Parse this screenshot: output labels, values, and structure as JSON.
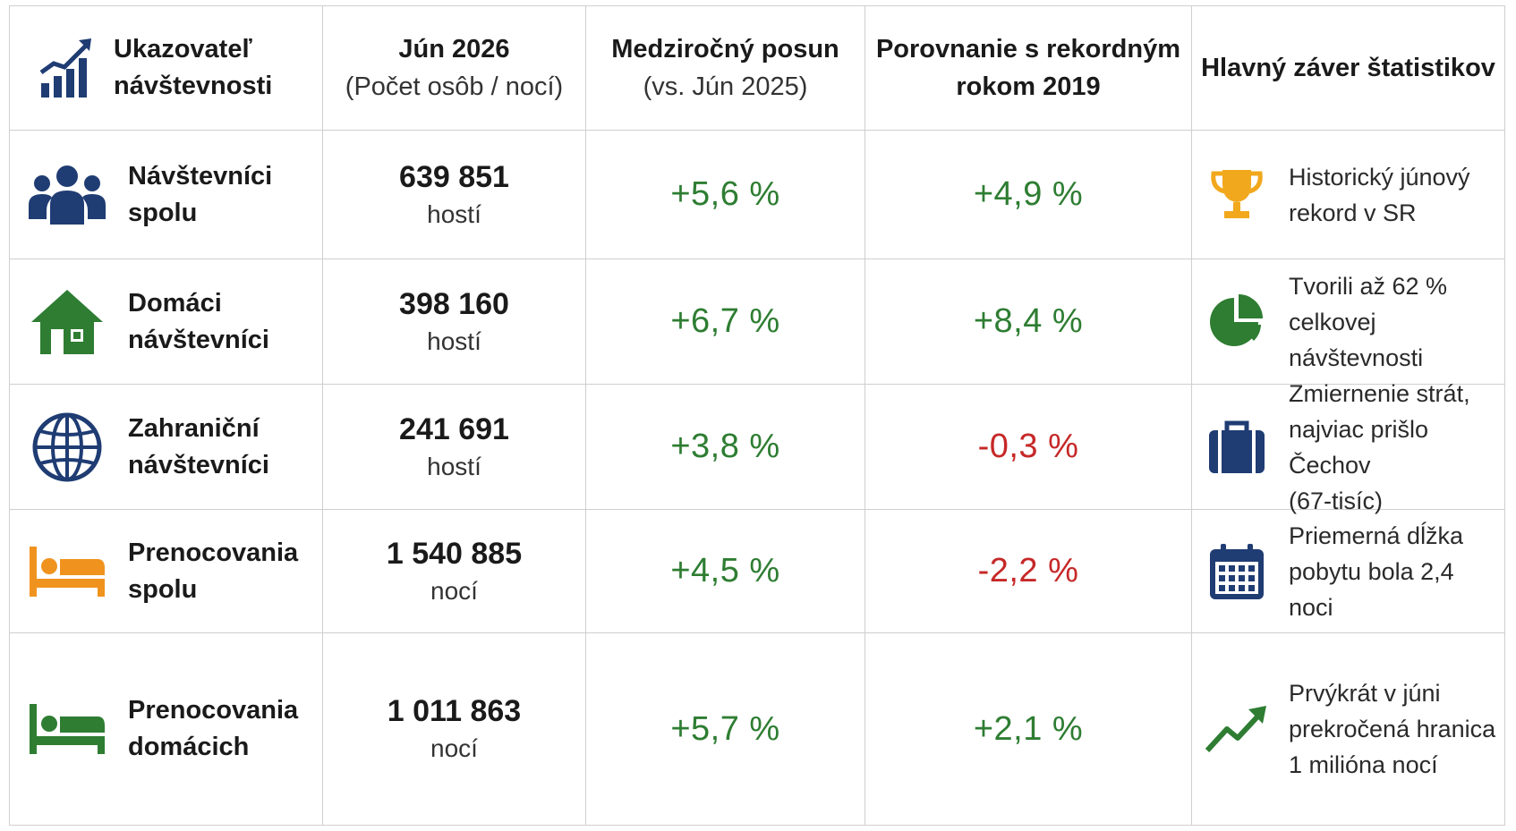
{
  "header": {
    "indicator": [
      "Ukazovateľ",
      "návštevnosti"
    ],
    "june": [
      "Jún 2026",
      "(Počet osôb / nocí)"
    ],
    "yoy": [
      "Medziročný posun",
      "(vs. Jún 2025)"
    ],
    "record": [
      "Porovnanie s rekordným",
      "rokom 2019"
    ],
    "conclusion": "Hlavný záver štatistikov"
  },
  "rows": [
    {
      "icon": "people-group-icon",
      "label": [
        "Návštevníci",
        "spolu"
      ],
      "value": "639 851",
      "unit": "hostí",
      "yoy": "+5,6 %",
      "record": "+4,9 %",
      "summary_icon": "trophy-icon",
      "summary": [
        "Historický júnový",
        "rekord v SR"
      ]
    },
    {
      "icon": "house-icon",
      "label": [
        "Domáci",
        "návštevníci"
      ],
      "value": "398 160",
      "unit": "hostí",
      "yoy": "+6,7 %",
      "record": "+8,4 %",
      "summary_icon": "pie-chart-icon",
      "summary": [
        "Tvorili až 62 %",
        "celkovej návštevnosti"
      ]
    },
    {
      "icon": "globe-icon",
      "label": [
        "Zahraniční",
        "návštevníci"
      ],
      "value": "241 691",
      "unit": "hostí",
      "yoy": "+3,8 %",
      "record": "-0,3 %",
      "summary_icon": "suitcase-icon",
      "summary": [
        "Zmiernenie strát,",
        "najviac prišlo Čechov",
        "(67-tisíc)"
      ]
    },
    {
      "icon": "bed-icon",
      "label": [
        "Prenocovania",
        "spolu"
      ],
      "value": "1 540 885",
      "unit": "nocí",
      "yoy": "+4,5 %",
      "record": "-2,2 %",
      "summary_icon": "calendar-icon",
      "summary": [
        "Priemerná dĺžka",
        "pobytu bola 2,4 noci"
      ]
    },
    {
      "icon": "bed-icon",
      "label": [
        "Prenocovania",
        "domácich"
      ],
      "value": "1 011 863",
      "unit": "nocí",
      "yoy": "+5,7 %",
      "record": "+2,1 %",
      "summary_icon": "trend-up-icon",
      "summary": [
        "Prvýkrát v júni",
        "prekročená hranica",
        "1 milióna nocí"
      ]
    }
  ],
  "colors": {
    "positive": "#2e7d32",
    "negative": "#c62828",
    "navy": "#1f3c73",
    "green": "#2e7d32",
    "orange": "#f0931e",
    "gold": "#f2a81d"
  }
}
